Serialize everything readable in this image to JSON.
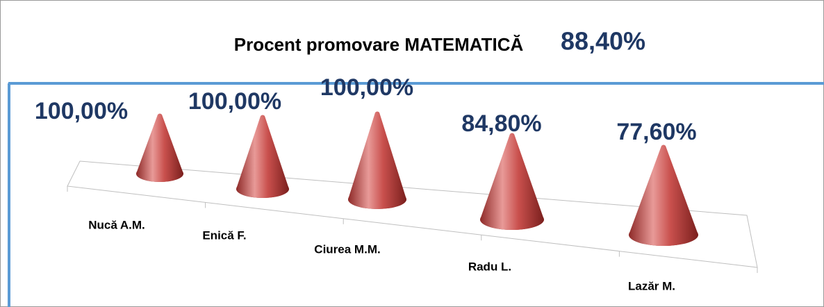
{
  "chart_data": {
    "type": "cone3d",
    "title": "Procent promovare MATEMATICĂ",
    "title_value": "88,40%",
    "categories": [
      "Nucă A.M.",
      "Enică F.",
      "Ciurea M.M.",
      "Radu L.",
      "Lazăr M."
    ],
    "values": [
      100,
      100,
      100,
      84.8,
      77.6
    ],
    "value_labels": [
      "100,00%",
      "100,00%",
      "100,00%",
      "84,80%",
      "77,60%"
    ],
    "color": "#c0504d"
  }
}
